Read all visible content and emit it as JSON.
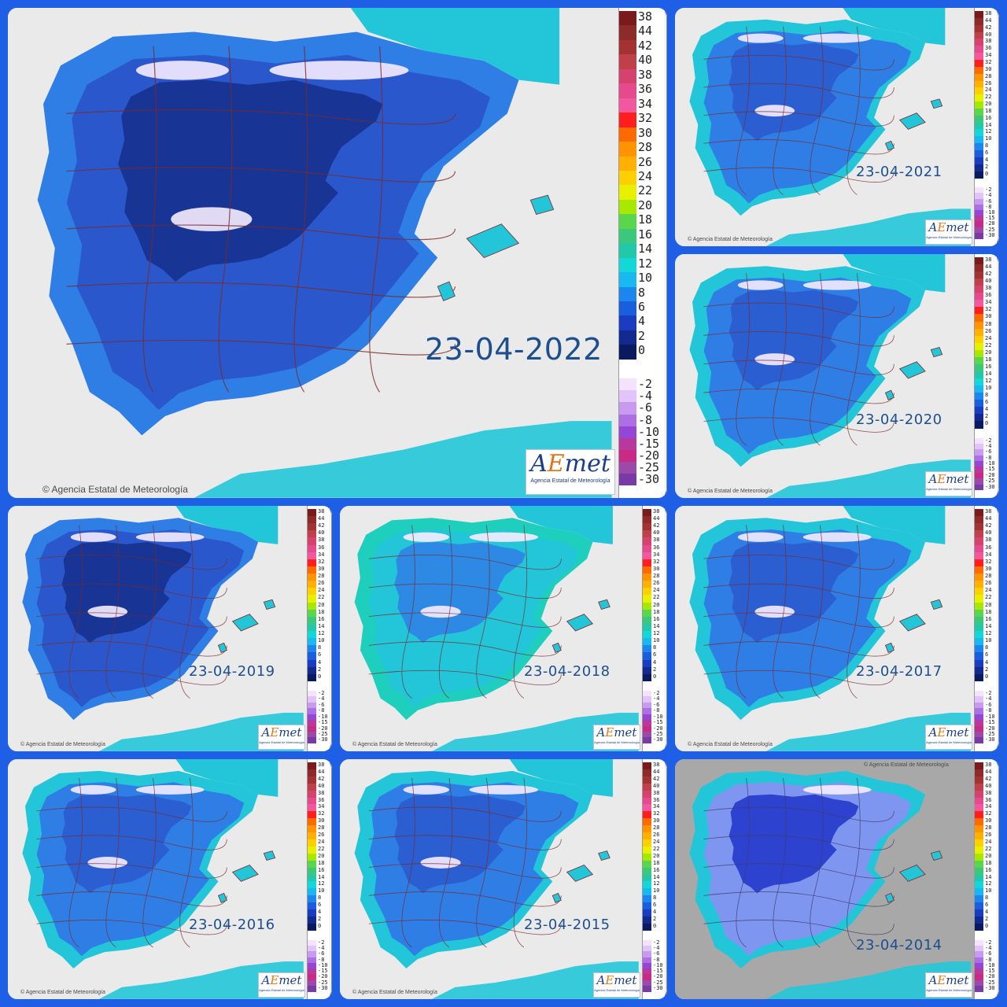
{
  "credit_text": "© Agencia Estatal de Meteorología",
  "logo": {
    "mark_a": "A",
    "mark_e": "E",
    "mark_rest": "met",
    "subtitle": "Agencia Estatal de Meteorología"
  },
  "legend": {
    "positive_labels": [
      "38",
      "44",
      "42",
      "40",
      "38",
      "36",
      "34",
      "32",
      "30",
      "28",
      "26",
      "24",
      "22",
      "20",
      "18",
      "16",
      "14",
      "12",
      "10",
      "8",
      "6",
      "4",
      "2",
      "0"
    ],
    "negative_labels": [
      "-2",
      "-4",
      "-6",
      "-8",
      "-10",
      "-15",
      "-20",
      "-25",
      "-30"
    ],
    "positive_colors": [
      "#7a1a1a",
      "#8f2a2a",
      "#a33232",
      "#c0404a",
      "#d6426e",
      "#e64a8c",
      "#f2589e",
      "#ff1e1e",
      "#ff6a00",
      "#ff9400",
      "#ffb000",
      "#ffd000",
      "#e8f000",
      "#a6e800",
      "#5ad64a",
      "#3cc87a",
      "#22c8a8",
      "#14d8d8",
      "#18b8f0",
      "#1a86ee",
      "#1a5ee0",
      "#1a3cc0",
      "#122a90",
      "#0a1a60"
    ],
    "negative_colors": [
      "#f4e2ff",
      "#e0c4fa",
      "#c89af0",
      "#ae6ee4",
      "#9446d6",
      "#b8389e",
      "#c82a86",
      "#9c4aaa",
      "#7a3aa6"
    ]
  },
  "panels": [
    {
      "id": "2022",
      "date": "23-04-2022",
      "tone": "cold"
    },
    {
      "id": "2021",
      "date": "23-04-2021",
      "tone": "mixed"
    },
    {
      "id": "2020",
      "date": "23-04-2020",
      "tone": "mixed"
    },
    {
      "id": "2019",
      "date": "23-04-2019",
      "tone": "cold"
    },
    {
      "id": "2018",
      "date": "23-04-2018",
      "tone": "mild"
    },
    {
      "id": "2017",
      "date": "23-04-2017",
      "tone": "mixed"
    },
    {
      "id": "2016",
      "date": "23-04-2016",
      "tone": "mixed"
    },
    {
      "id": "2015",
      "date": "23-04-2015",
      "tone": "mixed"
    },
    {
      "id": "2014",
      "date": "23-04-2014",
      "tone": "old"
    }
  ],
  "colors": {
    "sea": "#eaeaea",
    "land_cold": "#2a58cc",
    "land_core": "#152e8a",
    "land_mid": "#2f7ee6",
    "land_mild": "#22c6d8",
    "land_warm": "#1fcfbd",
    "border": "#7a2a2a",
    "snow": "#f6ecff",
    "old_bg": "#a8a8a8",
    "old_land": "#7f96f0",
    "old_core": "#1e34c8"
  }
}
